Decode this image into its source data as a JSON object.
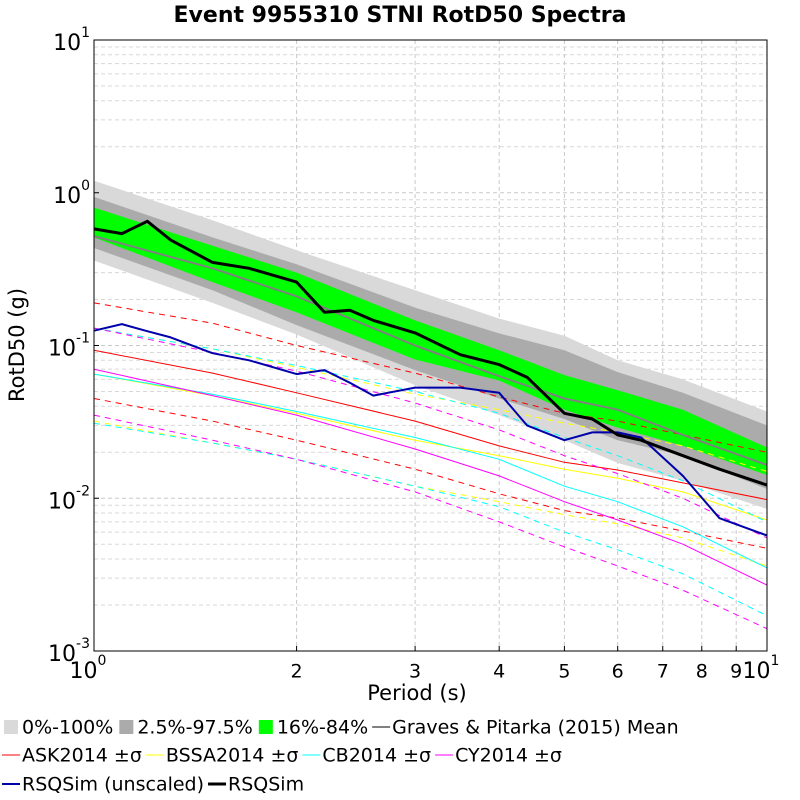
{
  "chart_data": {
    "type": "line",
    "title": "Event 9955310 STNI RotD50 Spectra",
    "x_label": "Period (s)",
    "y_label": "RotD50 (g)",
    "log_x": true,
    "log_y": true,
    "grid": true,
    "xlim": [
      1,
      10
    ],
    "ylim": [
      0.001,
      10
    ],
    "xticks": [
      {
        "value": 1,
        "label": "10",
        "exponent": "0"
      },
      2,
      3,
      4,
      5,
      6,
      7,
      8,
      9,
      {
        "value": 10,
        "label": "10",
        "exponent": "1"
      }
    ],
    "yticks": [
      {
        "value": 0.001,
        "label": "10",
        "exponent": "-3"
      },
      {
        "value": 0.01,
        "label": "10",
        "exponent": "-2"
      },
      {
        "value": 0.1,
        "label": "10",
        "exponent": "-1"
      },
      {
        "value": 1,
        "label": "10",
        "exponent": "0"
      },
      {
        "value": 10,
        "label": "10",
        "exponent": "1"
      }
    ],
    "y_minor_grid": [
      0.002,
      0.003,
      0.004,
      0.005,
      0.006,
      0.007,
      0.008,
      0.009,
      0.02,
      0.03,
      0.04,
      0.05,
      0.06,
      0.07,
      0.08,
      0.09,
      0.2,
      0.3,
      0.4,
      0.5,
      0.6,
      0.7,
      0.8,
      0.9,
      2,
      3,
      4,
      5,
      6,
      7,
      8,
      9
    ],
    "bands": [
      {
        "name": "0%-100%",
        "color": "#d9d9d9",
        "x": [
          1,
          1.5,
          2,
          3,
          4,
          5,
          6,
          7.5,
          10
        ],
        "upper": [
          1.2,
          0.66,
          0.42,
          0.23,
          0.15,
          0.116,
          0.08,
          0.06,
          0.037
        ],
        "lower": [
          0.36,
          0.19,
          0.118,
          0.055,
          0.035,
          0.024,
          0.017,
          0.013,
          0.0085
        ]
      },
      {
        "name": "2.5%-97.5%",
        "color": "#ababab",
        "x": [
          1,
          1.5,
          2,
          3,
          4,
          5,
          6,
          7.5,
          10
        ],
        "upper": [
          0.94,
          0.51,
          0.34,
          0.177,
          0.12,
          0.093,
          0.067,
          0.049,
          0.03
        ],
        "lower": [
          0.435,
          0.23,
          0.136,
          0.069,
          0.045,
          0.033,
          0.024,
          0.019,
          0.0115
        ]
      },
      {
        "name": "16%-84%",
        "color": "#00ff00",
        "x": [
          1,
          1.5,
          2,
          3,
          4,
          5,
          6,
          7.5,
          10
        ],
        "upper": [
          0.8,
          0.45,
          0.3,
          0.146,
          0.093,
          0.064,
          0.051,
          0.038,
          0.0215
        ],
        "lower": [
          0.51,
          0.26,
          0.165,
          0.081,
          0.059,
          0.038,
          0.029,
          0.022,
          0.0142
        ]
      }
    ],
    "series": [
      {
        "name": "Graves & Pitarka (2015) Mean",
        "color": "#808080",
        "width": 2,
        "x": [
          1,
          1.5,
          2,
          3,
          4,
          5,
          6,
          7.5,
          10
        ],
        "values": [
          0.52,
          0.32,
          0.21,
          0.1,
          0.063,
          0.045,
          0.038,
          0.026,
          0.0165
        ]
      },
      {
        "name": "ASK2014 ±σ",
        "color": "#ff0000",
        "width": 1,
        "x": [
          1,
          1.5,
          2,
          3,
          4,
          5,
          6,
          7.5,
          10
        ],
        "values": [
          0.093,
          0.066,
          0.049,
          0.032,
          0.022,
          0.0172,
          0.0153,
          0.0126,
          0.0098
        ],
        "upper": [
          0.19,
          0.14,
          0.1,
          0.066,
          0.046,
          0.036,
          0.032,
          0.026,
          0.02
        ],
        "lower": [
          0.045,
          0.032,
          0.024,
          0.0155,
          0.0107,
          0.0083,
          0.0074,
          0.0061,
          0.0047
        ]
      },
      {
        "name": "BSSA2014 ±σ",
        "color": "#ffff00",
        "width": 1,
        "x": [
          1,
          1.5,
          2,
          3,
          4,
          5,
          6,
          7.5,
          10
        ],
        "values": [
          0.065,
          0.047,
          0.036,
          0.024,
          0.019,
          0.0155,
          0.0135,
          0.011,
          0.0072
        ],
        "upper": [
          0.13,
          0.095,
          0.072,
          0.048,
          0.038,
          0.031,
          0.027,
          0.022,
          0.015
        ],
        "lower": [
          0.032,
          0.023,
          0.018,
          0.012,
          0.0095,
          0.0078,
          0.0068,
          0.0055,
          0.0036
        ]
      },
      {
        "name": "CB2014 ±σ",
        "color": "#00ffff",
        "width": 1,
        "x": [
          1,
          1.5,
          2,
          3,
          4,
          5,
          6,
          7.5,
          10
        ],
        "values": [
          0.065,
          0.048,
          0.037,
          0.025,
          0.018,
          0.012,
          0.0095,
          0.0065,
          0.0035
        ],
        "upper": [
          0.13,
          0.095,
          0.074,
          0.05,
          0.036,
          0.025,
          0.019,
          0.013,
          0.007
        ],
        "lower": [
          0.031,
          0.023,
          0.018,
          0.012,
          0.0088,
          0.006,
          0.0046,
          0.0032,
          0.0017
        ]
      },
      {
        "name": "CY2014 ±σ",
        "color": "#ff00ff",
        "width": 1,
        "x": [
          1,
          1.5,
          2,
          3,
          4,
          5,
          6,
          7.5,
          10
        ],
        "values": [
          0.07,
          0.047,
          0.035,
          0.021,
          0.014,
          0.0095,
          0.0072,
          0.005,
          0.0027
        ],
        "upper": [
          0.13,
          0.09,
          0.068,
          0.042,
          0.028,
          0.019,
          0.0145,
          0.01,
          0.0055
        ],
        "lower": [
          0.035,
          0.024,
          0.018,
          0.011,
          0.007,
          0.0048,
          0.0036,
          0.0025,
          0.0014
        ]
      },
      {
        "name": "RSQSim (unscaled)",
        "color": "#0000aa",
        "width": 2,
        "x": [
          1,
          1.1,
          1.2,
          1.3,
          1.5,
          1.7,
          2,
          2.2,
          2.4,
          2.6,
          3,
          3.5,
          4,
          4.4,
          5,
          5.5,
          6,
          6.5,
          7.5,
          8.5,
          10
        ],
        "values": [
          0.125,
          0.138,
          0.124,
          0.113,
          0.089,
          0.08,
          0.065,
          0.069,
          0.057,
          0.047,
          0.053,
          0.053,
          0.049,
          0.03,
          0.024,
          0.027,
          0.027,
          0.025,
          0.014,
          0.0074,
          0.0057
        ]
      },
      {
        "name": "RSQSim",
        "color": "#000000",
        "width": 3,
        "x": [
          1,
          1.1,
          1.2,
          1.3,
          1.5,
          1.7,
          2,
          2.2,
          2.4,
          2.6,
          3,
          3.5,
          4,
          4.4,
          5,
          5.5,
          6,
          6.5,
          7.5,
          8.5,
          10
        ],
        "values": [
          0.58,
          0.54,
          0.65,
          0.49,
          0.35,
          0.32,
          0.26,
          0.165,
          0.17,
          0.146,
          0.121,
          0.087,
          0.075,
          0.062,
          0.036,
          0.033,
          0.026,
          0.024,
          0.019,
          0.0155,
          0.0122
        ]
      }
    ]
  }
}
